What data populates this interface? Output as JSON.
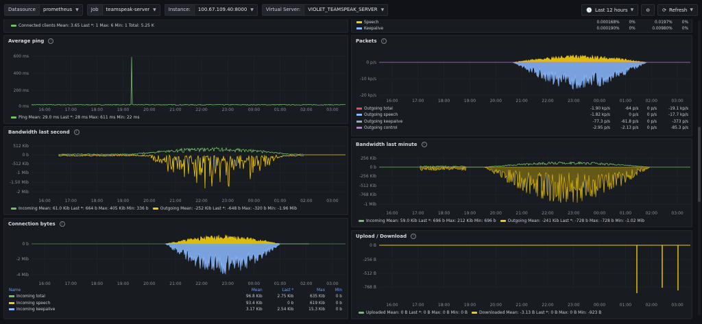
{
  "topbar": {
    "vars": [
      {
        "label": "Datasource",
        "value": "prometheus"
      },
      {
        "label": "Job",
        "value": "teamspeak-server"
      },
      {
        "label": "Instance:",
        "value": "100.67.109.40:8000"
      },
      {
        "label": "Virtual Server:",
        "value": "VIOLET_TEAMSPEAK_SERVER"
      }
    ],
    "time_range": "Last 12 hours",
    "refresh": "Refresh"
  },
  "time_ticks": [
    "16:00",
    "17:00",
    "18:00",
    "19:00",
    "20:00",
    "21:00",
    "22:00",
    "23:00",
    "00:00",
    "01:00",
    "02:00",
    "03:00"
  ],
  "connected": {
    "legend": "Connected clients  Mean: 3.65  Last *: 1  Max: 6  Min: 1  Total: 5.25 K",
    "color": "#73bf69"
  },
  "ping": {
    "title": "Average ping",
    "yticks": [
      "600 ms",
      "400 ms",
      "200 ms",
      "0 ms"
    ],
    "legend": "Ping  Mean: 29.0 ms  Last *: 28 ms  Max: 611 ms  Min: 22 ms",
    "color": "#73bf69"
  },
  "bw_second": {
    "title": "Bandwidth last second",
    "yticks": [
      "512 Kib",
      "0 b",
      "-512 Kib",
      "-1 Mib",
      "-1.50 Mib",
      "-2 Mib"
    ],
    "legend_in": "Incoming  Mean: 61.0 Kib  Last *: 664 b  Max: 405 Kib  Min: 336 b",
    "legend_out": "Outgoing  Mean: -252 Kib  Last *: -648 b  Max: -320 b  Min: -1.96 Mib"
  },
  "conn_bytes": {
    "title": "Connection bytes",
    "yticks": [
      "0 b",
      "-2 Mib",
      "-4 Mib"
    ],
    "headers": [
      "Name",
      "Mean",
      "Last *",
      "Max",
      "Min"
    ],
    "rows": [
      {
        "name": "Incoming total",
        "mean": "96.8 Kib",
        "last": "2.75 Kib",
        "max": "635 Kib",
        "min": "0 b",
        "color": "#73bf69"
      },
      {
        "name": "Incoming speech",
        "mean": "93.4 Kib",
        "last": "0 b",
        "max": "619 Kib",
        "min": "0 b",
        "color": "#f2cc0c"
      },
      {
        "name": "Incoming keepalive",
        "mean": "3.17 Kib",
        "last": "2.54 Kib",
        "max": "15.3 Kib",
        "min": "0 b",
        "color": "#8ab8ff"
      }
    ]
  },
  "top_right": {
    "rows": [
      {
        "name": "Speech",
        "c1": "0.000168%",
        "c2": "0%",
        "c3": "0.0197%",
        "c4": "0%",
        "color": "#f2cc0c"
      },
      {
        "name": "Keepalive",
        "c1": "0.000190%",
        "c2": "0%",
        "c3": "0.00980%",
        "c4": "0%",
        "color": "#8ab8ff"
      }
    ]
  },
  "packets": {
    "title": "Packets",
    "yticks": [
      "0 p/s",
      "-10 kp/s",
      "-20 kp/s"
    ],
    "rows": [
      {
        "name": "Outgoing total",
        "c1": "-1.90 kp/s",
        "c2": "-64 p/s",
        "c3": "0 p/s",
        "c4": "-19.1 kp/s",
        "color": "#f2495c"
      },
      {
        "name": "Outgoing speech",
        "c1": "-1.82 kp/s",
        "c2": "0 p/s",
        "c3": "0 p/s",
        "c4": "-17.7 kp/s",
        "color": "#8ab8ff"
      },
      {
        "name": "Outgoing keepalive",
        "c1": "-77.3 p/s",
        "c2": "-61.8 p/s",
        "c3": "0 p/s",
        "c4": "-373 p/s",
        "color": "#9fa7b3"
      },
      {
        "name": "Outgoing control",
        "c1": "-2.95 p/s",
        "c2": "-2.13 p/s",
        "c3": "0 p/s",
        "c4": "-85.3 p/s",
        "color": "#b877d9"
      }
    ]
  },
  "bw_minute": {
    "title": "Bandwidth last minute",
    "yticks": [
      "256 Kib",
      "0 b",
      "-256 Kib",
      "-512 Kib",
      "-768 Kib",
      "-1 Mib"
    ],
    "legend_in": "Incoming  Mean: 59.0 Kib  Last *: 696 b  Max: 212 Kib  Min: 696 b",
    "legend_out": "Outgoing  Mean: -241 Kib  Last *: -728 b  Max: -728 b  Min: -1.02 Mib"
  },
  "updown": {
    "title": "Upload / Download",
    "yticks": [
      "0 B",
      "-256 B",
      "-512 B",
      "-768 B"
    ],
    "legend_up": "Uploaded  Mean: 0 B  Last *: 0 B  Max: 0 B  Min: 0 B",
    "legend_down": "Downloaded  Mean: -3.13 B  Last *: 0 B  Max: 0 B  Min: -923 B"
  },
  "colors": {
    "green": "#73bf69",
    "yellow": "#f2cc0c",
    "blue": "#8ab8ff"
  }
}
